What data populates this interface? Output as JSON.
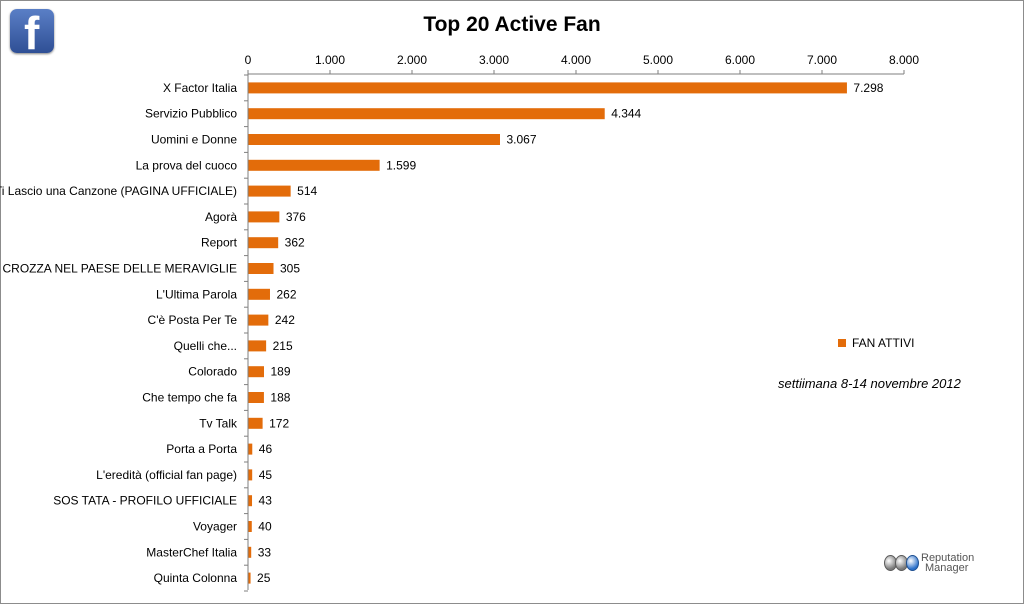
{
  "chart_data": {
    "type": "bar",
    "orientation": "horizontal",
    "title": "Top 20 Active Fan",
    "categories": [
      "X Factor Italia",
      "Servizio Pubblico",
      "Uomini e Donne",
      "La prova del cuoco",
      "Ti Lascio una Canzone (PAGINA UFFICIALE)",
      "Agorà",
      "Report",
      "CROZZA NEL PAESE DELLE MERAVIGLIE",
      "L'Ultima Parola",
      "C'è Posta Per Te",
      "Quelli che...",
      "Colorado",
      "Che tempo che fa",
      "Tv Talk",
      "Porta a Porta",
      "L'eredità (official fan page)",
      "SOS TATA - PROFILO UFFICIALE",
      "Voyager",
      "MasterChef Italia",
      "Quinta Colonna"
    ],
    "series": [
      {
        "name": "FAN ATTIVI",
        "values": [
          7298,
          4344,
          3067,
          1599,
          514,
          376,
          362,
          305,
          262,
          242,
          215,
          189,
          188,
          172,
          46,
          45,
          43,
          40,
          33,
          25
        ],
        "value_labels": [
          "7.298",
          "4.344",
          "3.067",
          "1.599",
          "514",
          "376",
          "362",
          "305",
          "262",
          "242",
          "215",
          "189",
          "188",
          "172",
          "46",
          "45",
          "43",
          "40",
          "33",
          "25"
        ]
      }
    ],
    "xlim": [
      0,
      8000
    ],
    "x_ticks": [
      0,
      1000,
      2000,
      3000,
      4000,
      5000,
      6000,
      7000,
      8000
    ],
    "x_tick_labels": [
      "0",
      "1.000",
      "2.000",
      "3.000",
      "4.000",
      "5.000",
      "6.000",
      "7.000",
      "8.000"
    ],
    "x_axis_position": "top",
    "grid": false,
    "legend": "right",
    "bar_color": "#e36c0a",
    "annotation": "settiimana 8-14 novembre 2012"
  },
  "branding": {
    "facebook_icon": "facebook-logo-icon",
    "rm_line1": "Reputation",
    "rm_line2": "Manager"
  }
}
